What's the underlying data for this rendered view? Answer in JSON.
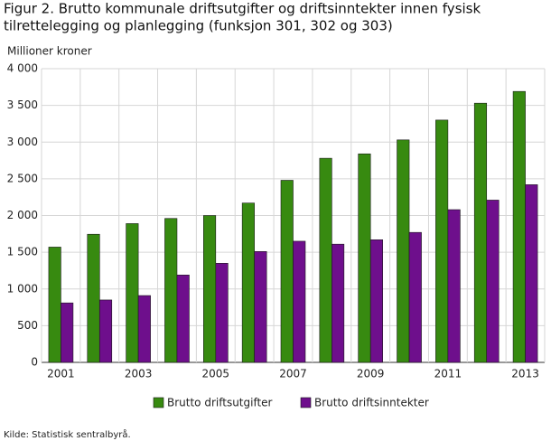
{
  "chart_data": {
    "type": "bar",
    "title": [
      "Figur 2. Brutto kommunale driftsutgifter og driftsinntekter innen fysisk",
      "tilrettelegging og planlegging (funksjon 301, 302 og 303)"
    ],
    "y_label": "Millioner kroner",
    "source": "Kilde: Statistisk sentralbyrå.",
    "categories": [
      "2001",
      null,
      "2003",
      null,
      "2005",
      null,
      "2007",
      null,
      "2009",
      null,
      "2011",
      null,
      "2013"
    ],
    "series": [
      {
        "name": "Brutto driftsutgifter",
        "color": "#378a10",
        "values": [
          1570,
          1745,
          1890,
          1960,
          2000,
          2170,
          2480,
          2780,
          2840,
          3030,
          3300,
          3530,
          3690
        ]
      },
      {
        "name": "Brutto driftsinntekter",
        "color": "#6e0f8c",
        "values": [
          810,
          850,
          910,
          1190,
          1350,
          1510,
          1650,
          1610,
          1670,
          1770,
          2080,
          2210,
          2420
        ]
      }
    ],
    "ylim": [
      0,
      4000
    ],
    "yticks": [
      0,
      500,
      {
        "value": 1000,
        "label": "1 000"
      },
      {
        "value": 1500,
        "label": "1 500"
      },
      {
        "value": 2000,
        "label": "2 000"
      },
      {
        "value": 2500,
        "label": "2 500"
      },
      {
        "value": 3000,
        "label": "3 000"
      },
      {
        "value": 3500,
        "label": "3 500"
      },
      {
        "value": 4000,
        "label": "4 000"
      }
    ],
    "grid": true,
    "legend": "bottom"
  }
}
